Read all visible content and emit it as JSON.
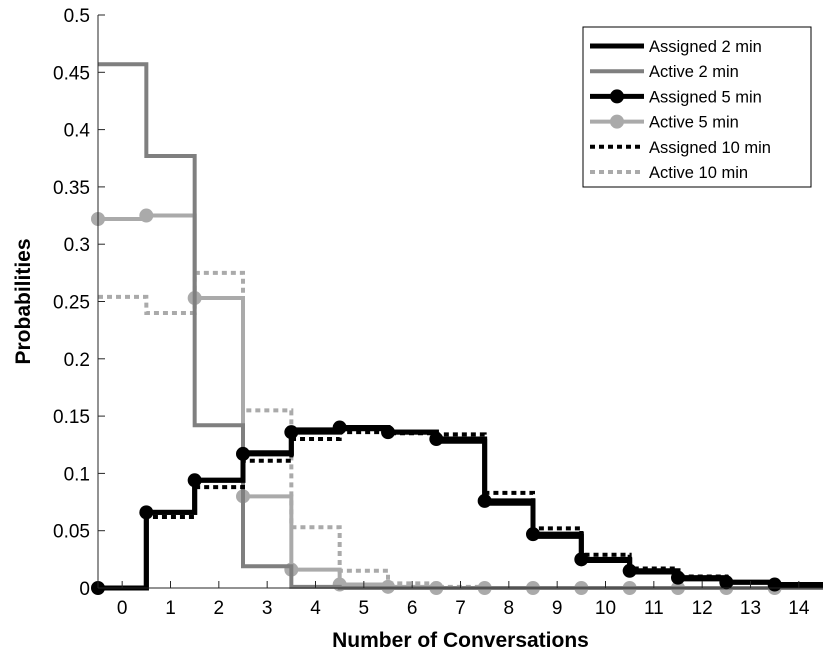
{
  "chart_data": {
    "type": "line",
    "title": "",
    "xlabel": "Number of Conversations",
    "ylabel": "Probabilities",
    "xlim": [
      -0.5,
      14.5
    ],
    "ylim": [
      0,
      0.5
    ],
    "xticks": [
      "0",
      "1",
      "2",
      "3",
      "4",
      "5",
      "6",
      "7",
      "8",
      "9",
      "10",
      "11",
      "12",
      "13",
      "14"
    ],
    "yticks": [
      "0",
      "0.05",
      "0.1",
      "0.15",
      "0.2",
      "0.25",
      "0.3",
      "0.35",
      "0.4",
      "0.45",
      "0.5"
    ],
    "grid": false,
    "legend_position": "top-right",
    "x": [
      0,
      1,
      2,
      3,
      4,
      5,
      6,
      7,
      8,
      9,
      10,
      11,
      12,
      13,
      14
    ],
    "series": [
      {
        "name": "Assigned 2 min",
        "color": "#000000",
        "style": "solid",
        "marker": "none",
        "values": [
          0,
          0.066,
          0.094,
          0.118,
          0.138,
          0.139,
          0.136,
          0.128,
          0.074,
          0.045,
          0.024,
          0.014,
          0.008,
          0.005,
          0.002
        ]
      },
      {
        "name": "Active 2 min",
        "color": "#7f7f7f",
        "style": "solid",
        "marker": "none",
        "values": [
          0.457,
          0.377,
          0.142,
          0.019,
          0.001,
          0,
          0,
          0,
          0,
          0,
          0,
          0,
          0,
          0,
          0
        ]
      },
      {
        "name": "Assigned 5 min",
        "color": "#000000",
        "style": "solid",
        "marker": "circle",
        "values": [
          0,
          0.066,
          0.094,
          0.117,
          0.136,
          0.14,
          0.136,
          0.13,
          0.076,
          0.047,
          0.025,
          0.015,
          0.009,
          0.005,
          0.003
        ]
      },
      {
        "name": "Active 5 min",
        "color": "#aaaaaa",
        "style": "solid",
        "marker": "circle",
        "values": [
          0.322,
          0.325,
          0.253,
          0.08,
          0.016,
          0.003,
          0.001,
          0,
          0,
          0,
          0,
          0,
          0,
          0,
          0
        ]
      },
      {
        "name": "Assigned 10 min",
        "color": "#000000",
        "style": "dotted",
        "marker": "none",
        "values": [
          0,
          0.062,
          0.088,
          0.111,
          0.13,
          0.136,
          0.135,
          0.134,
          0.083,
          0.052,
          0.029,
          0.017,
          0.01,
          0.005,
          0.003
        ]
      },
      {
        "name": "Active 10 min",
        "color": "#aaaaaa",
        "style": "dotted",
        "marker": "none",
        "values": [
          0.254,
          0.24,
          0.275,
          0.155,
          0.053,
          0.015,
          0.004,
          0.001,
          0,
          0,
          0,
          0,
          0,
          0,
          0
        ]
      }
    ]
  }
}
